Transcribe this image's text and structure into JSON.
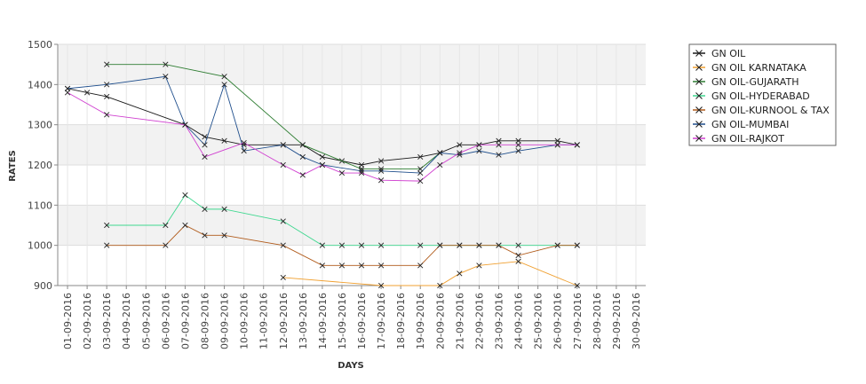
{
  "chart_data": {
    "type": "line",
    "xlabel": "DAYS",
    "ylabel": "RATES",
    "ylim": [
      900,
      1500
    ],
    "yticks": [
      900,
      1000,
      1100,
      1200,
      1300,
      1400,
      1500
    ],
    "grid": true,
    "legend_position": "right",
    "categories": [
      "01-09-2016",
      "02-09-2016",
      "03-09-2016",
      "04-09-2016",
      "05-09-2016",
      "06-09-2016",
      "07-09-2016",
      "08-09-2016",
      "09-09-2016",
      "10-09-2016",
      "11-09-2016",
      "12-09-2016",
      "13-09-2016",
      "14-09-2016",
      "15-09-2016",
      "16-09-2016",
      "17-09-2016",
      "18-09-2016",
      "19-09-2016",
      "20-09-2016",
      "21-09-2016",
      "22-09-2016",
      "23-09-2016",
      "24-09-2016",
      "25-09-2016",
      "26-09-2016",
      "27-09-2016",
      "28-09-2016",
      "29-09-2016",
      "30-09-2016"
    ],
    "series": [
      {
        "name": "GN OIL",
        "color": "#1a1a1a",
        "values": [
          1390,
          1380,
          1370,
          null,
          null,
          null,
          1300,
          1270,
          1260,
          1250,
          null,
          1250,
          1250,
          1220,
          1210,
          1200,
          1210,
          null,
          1220,
          1230,
          1250,
          1250,
          1260,
          1260,
          null,
          1260,
          1250,
          null,
          null,
          null
        ]
      },
      {
        "name": "GN OIL KARNATAKA",
        "color": "#f0a030",
        "values": [
          null,
          null,
          null,
          null,
          null,
          null,
          null,
          null,
          null,
          null,
          null,
          920,
          null,
          null,
          null,
          null,
          900,
          null,
          null,
          900,
          930,
          950,
          null,
          960,
          null,
          null,
          900,
          null,
          null,
          null
        ]
      },
      {
        "name": "GN OIL-GUJARATH",
        "color": "#2e7d32",
        "values": [
          null,
          null,
          1450,
          null,
          null,
          1450,
          null,
          null,
          1420,
          null,
          null,
          null,
          1250,
          null,
          null,
          1190,
          1190,
          null,
          1190,
          1230,
          null,
          null,
          null,
          null,
          null,
          null,
          null,
          null,
          null,
          null
        ]
      },
      {
        "name": "GN OIL-HYDERABAD",
        "color": "#40d890",
        "values": [
          null,
          null,
          1050,
          null,
          null,
          1050,
          1125,
          1090,
          1090,
          null,
          null,
          1060,
          null,
          1000,
          1000,
          1000,
          1000,
          null,
          1000,
          1000,
          1000,
          1000,
          1000,
          1000,
          null,
          1000,
          1000,
          null,
          null,
          null
        ]
      },
      {
        "name": "GN OIL-KURNOOL & TAX",
        "color": "#b05a1a",
        "values": [
          null,
          null,
          1000,
          null,
          null,
          1000,
          1050,
          1025,
          1025,
          null,
          null,
          1000,
          null,
          950,
          950,
          950,
          950,
          null,
          950,
          1000,
          1000,
          1000,
          1000,
          975,
          null,
          1000,
          1000,
          null,
          null,
          null
        ]
      },
      {
        "name": "GN OIL-MUMBAI",
        "color": "#1f4e8c",
        "values": [
          1390,
          null,
          1400,
          null,
          null,
          1420,
          1300,
          1250,
          1400,
          1235,
          null,
          1250,
          1220,
          1200,
          null,
          1185,
          1185,
          null,
          1180,
          1230,
          1225,
          1235,
          1225,
          1235,
          null,
          1250,
          1250,
          null,
          null,
          null
        ]
      },
      {
        "name": "GN OIL-RAJKOT",
        "color": "#d040d0",
        "values": [
          1380,
          null,
          1325,
          null,
          null,
          null,
          1300,
          1220,
          null,
          1255,
          null,
          1200,
          1175,
          1200,
          1180,
          1180,
          1162,
          null,
          1160,
          1200,
          1230,
          1250,
          1250,
          1250,
          null,
          1250,
          1250,
          null,
          null,
          null
        ]
      }
    ]
  }
}
